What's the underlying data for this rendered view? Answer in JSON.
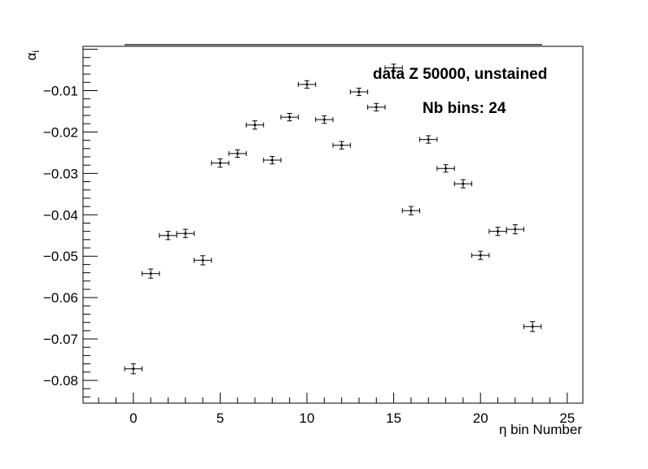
{
  "chart_data": {
    "type": "scatter",
    "title": "",
    "xlabel": "η bin Number",
    "ylabel": "α",
    "ylabel_subscript": "i",
    "xlim": [
      -2.9,
      25.9
    ],
    "ylim": [
      -0.0855,
      0.0007
    ],
    "x_ticks": [
      0,
      5,
      10,
      15,
      20,
      25
    ],
    "x_tick_labels": [
      "0",
      "5",
      "10",
      "15",
      "20",
      "25"
    ],
    "y_ticks": [
      -0.08,
      -0.07,
      -0.06,
      -0.05,
      -0.04,
      -0.03,
      -0.02,
      -0.01
    ],
    "y_tick_labels": [
      "−0.08",
      "−0.07",
      "−0.06",
      "−0.05",
      "−0.04",
      "−0.03",
      "−0.02",
      "−0.01"
    ],
    "grid": false,
    "x_error": 0.5,
    "points": [
      {
        "x": 0,
        "y": -0.0772,
        "err": 0.0012
      },
      {
        "x": 1,
        "y": -0.0542,
        "err": 0.0011
      },
      {
        "x": 2,
        "y": -0.045,
        "err": 0.001
      },
      {
        "x": 3,
        "y": -0.0445,
        "err": 0.001
      },
      {
        "x": 4,
        "y": -0.051,
        "err": 0.0011
      },
      {
        "x": 5,
        "y": -0.0275,
        "err": 0.001
      },
      {
        "x": 6,
        "y": -0.0252,
        "err": 0.0009
      },
      {
        "x": 7,
        "y": -0.0183,
        "err": 0.001
      },
      {
        "x": 8,
        "y": -0.0268,
        "err": 0.0009
      },
      {
        "x": 9,
        "y": -0.0164,
        "err": 0.0009
      },
      {
        "x": 10,
        "y": -0.0085,
        "err": 0.0009
      },
      {
        "x": 11,
        "y": -0.017,
        "err": 0.0009
      },
      {
        "x": 12,
        "y": -0.0232,
        "err": 0.0009
      },
      {
        "x": 13,
        "y": -0.0103,
        "err": 0.0009
      },
      {
        "x": 14,
        "y": -0.014,
        "err": 0.0009
      },
      {
        "x": 15,
        "y": -0.0045,
        "err": 0.0009
      },
      {
        "x": 16,
        "y": -0.039,
        "err": 0.001
      },
      {
        "x": 17,
        "y": -0.0218,
        "err": 0.0009
      },
      {
        "x": 18,
        "y": -0.0288,
        "err": 0.0009
      },
      {
        "x": 19,
        "y": -0.0325,
        "err": 0.001
      },
      {
        "x": 20,
        "y": -0.0498,
        "err": 0.001
      },
      {
        "x": 21,
        "y": -0.044,
        "err": 0.001
      },
      {
        "x": 22,
        "y": -0.0435,
        "err": 0.0011
      },
      {
        "x": 23,
        "y": -0.067,
        "err": 0.0012
      }
    ],
    "annotations": [
      "data Z 50000, unstained",
      "Nb bins: 24"
    ]
  }
}
